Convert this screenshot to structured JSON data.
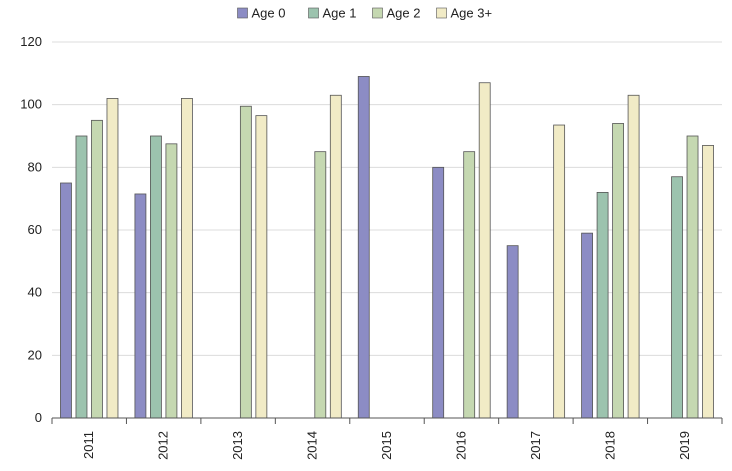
{
  "chart_data": {
    "type": "bar",
    "title": "",
    "xlabel": "",
    "ylabel": "",
    "ylim": [
      0,
      120
    ],
    "yticks": [
      0,
      20,
      40,
      60,
      80,
      100,
      120
    ],
    "grid": true,
    "legend_position": "top-center",
    "categories": [
      "2011",
      "2012",
      "2013",
      "2014",
      "2015",
      "2016",
      "2017",
      "2018",
      "2019"
    ],
    "series": [
      {
        "name": "Age 0",
        "color": "#8c8cc4",
        "values": [
          75,
          71.5,
          null,
          null,
          109,
          80,
          55,
          59,
          null
        ]
      },
      {
        "name": "Age 1",
        "color": "#9cc3ae",
        "values": [
          90,
          90,
          null,
          null,
          null,
          null,
          null,
          72,
          77
        ]
      },
      {
        "name": "Age 2",
        "color": "#c5d8b1",
        "values": [
          95,
          87.5,
          99.5,
          85,
          null,
          85,
          null,
          94,
          90
        ]
      },
      {
        "name": "Age 3+",
        "color": "#f1ebc6",
        "values": [
          102,
          102,
          96.5,
          103,
          null,
          107,
          93.5,
          103,
          87
        ]
      }
    ]
  }
}
